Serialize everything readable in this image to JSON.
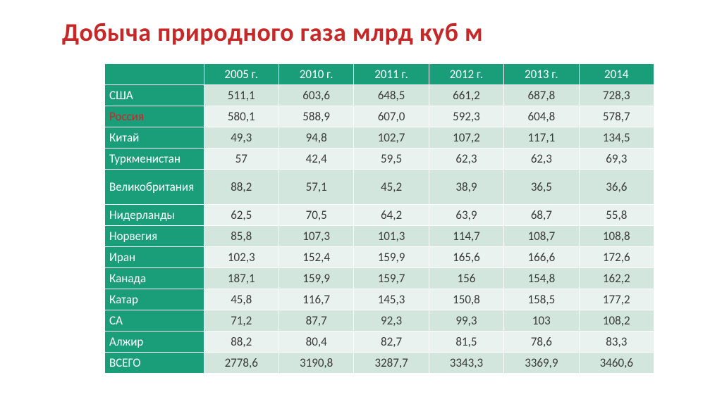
{
  "title": "Добыча природного газа млрд куб м",
  "table": {
    "columns": [
      "2005 г.",
      "2010 г.",
      "2011 г.",
      "2012 г.",
      "2013 г.",
      "2014"
    ],
    "rows": [
      {
        "label": "США",
        "cells": [
          "511,1",
          "603,6",
          "648,5",
          "661,2",
          "687,8",
          "728,3"
        ],
        "highlight": false,
        "tall": false
      },
      {
        "label": "Россия",
        "cells": [
          "580,1",
          "588,9",
          "607,0",
          "592,3",
          "604,8",
          "578,7"
        ],
        "highlight": true,
        "tall": false
      },
      {
        "label": "Китай",
        "cells": [
          "49,3",
          "94,8",
          "102,7",
          "107,2",
          "117,1",
          "134,5"
        ],
        "highlight": false,
        "tall": false
      },
      {
        "label": "Туркменистан",
        "cells": [
          "57",
          "42,4",
          "59,5",
          "62,3",
          "62,3",
          "69,3"
        ],
        "highlight": false,
        "tall": false
      },
      {
        "label": "Великобритания",
        "cells": [
          "88,2",
          "57,1",
          "45,2",
          "38,9",
          "36,5",
          "36,6"
        ],
        "highlight": false,
        "tall": true
      },
      {
        "label": "Нидерланды",
        "cells": [
          "62,5",
          "70,5",
          "64,2",
          "63,9",
          "68,7",
          "55,8"
        ],
        "highlight": false,
        "tall": false
      },
      {
        "label": "Норвегия",
        "cells": [
          "85,8",
          "107,3",
          "101,3",
          "114,7",
          "108,7",
          "108,8"
        ],
        "highlight": false,
        "tall": false
      },
      {
        "label": "Иран",
        "cells": [
          "102,3",
          "152,4",
          "159,9",
          "165,6",
          "166,6",
          "172,6"
        ],
        "highlight": false,
        "tall": false
      },
      {
        "label": "Канада",
        "cells": [
          "187,1",
          "159,9",
          "159,7",
          "156",
          "154,8",
          "162,2"
        ],
        "highlight": false,
        "tall": false
      },
      {
        "label": "Катар",
        "cells": [
          "45,8",
          "116,7",
          "145,3",
          "150,8",
          "158,5",
          "177,2"
        ],
        "highlight": false,
        "tall": false
      },
      {
        "label": "СА",
        "cells": [
          "71,2",
          "87,7",
          "92,3",
          "99,3",
          "103",
          "108,2"
        ],
        "highlight": false,
        "tall": false
      },
      {
        "label": "Алжир",
        "cells": [
          "88,2",
          "80,4",
          "82,7",
          "81,5",
          "78,6",
          "83,3"
        ],
        "highlight": false,
        "tall": false
      },
      {
        "label": "ВСЕГО",
        "cells": [
          "2778,6",
          "3190,8",
          "3287,7",
          "3343,3",
          "3369,9",
          "3460,6"
        ],
        "highlight": false,
        "tall": false
      }
    ]
  },
  "style": {
    "title_color": "#c62828",
    "header_bg": "#1a9e7a",
    "header_fg": "#ffffff",
    "row_odd_bg": "#d2e6de",
    "row_even_bg": "#e9f2ee",
    "cell_fg": "#3a3a3a",
    "border_color": "#ffffff",
    "title_fontsize": 36,
    "table_fontsize": 17,
    "label_col_width": 140,
    "data_col_width": 106
  }
}
